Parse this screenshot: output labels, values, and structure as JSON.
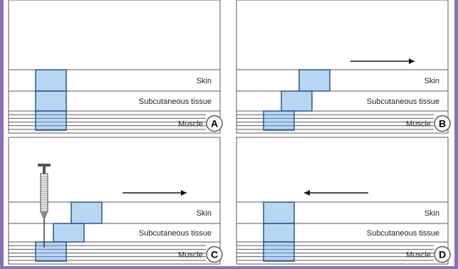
{
  "colors": {
    "frame": "#8a72b8",
    "line": "#5a5a5a",
    "block_fill": "#b8d6f2",
    "block_stroke": "#1f4a8a",
    "text": "#222222",
    "arrow": "#111111"
  },
  "layer_labels": {
    "skin": "Skin",
    "subcutaneous": "Subcutaneous tissue",
    "muscle": "Muscle"
  },
  "panels": [
    {
      "letter": "A",
      "blocks": [
        {
          "layer": "skin",
          "offset": 0
        },
        {
          "layer": "subcutaneous",
          "offset": 0
        },
        {
          "layer": "muscle",
          "offset": 0
        }
      ],
      "arrow": "none",
      "needle": false
    },
    {
      "letter": "B",
      "blocks": [
        {
          "layer": "skin",
          "offset": 2
        },
        {
          "layer": "subcutaneous",
          "offset": 1
        },
        {
          "layer": "muscle",
          "offset": 0
        }
      ],
      "arrow": "right",
      "needle": false
    },
    {
      "letter": "C",
      "blocks": [
        {
          "layer": "skin",
          "offset": 2
        },
        {
          "layer": "subcutaneous",
          "offset": 1
        },
        {
          "layer": "muscle",
          "offset": 0
        }
      ],
      "arrow": "right",
      "needle": true
    },
    {
      "letter": "D",
      "blocks": [
        {
          "layer": "skin",
          "offset": 0
        },
        {
          "layer": "subcutaneous",
          "offset": 0
        },
        {
          "layer": "muscle",
          "offset": 0
        }
      ],
      "arrow": "left",
      "needle": false
    }
  ]
}
